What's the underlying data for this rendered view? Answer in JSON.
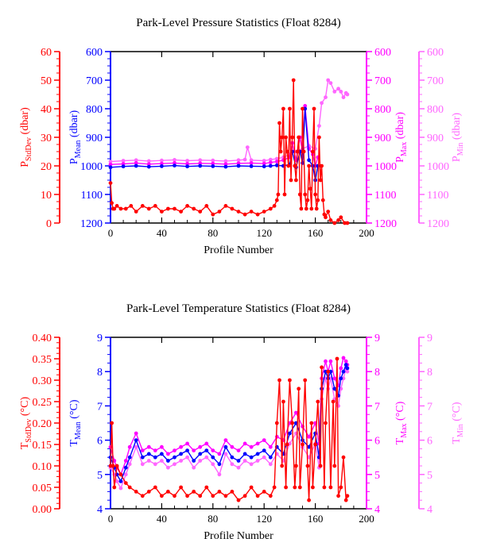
{
  "colors": {
    "stddev": "#ff0000",
    "mean": "#0000ff",
    "max": "#ff00ff",
    "min": "#ff66ff",
    "frame": "#000000"
  },
  "chart_data": [
    {
      "type": "line",
      "title": "Park-Level Pressure Statistics (Float 8284)",
      "xlabel": "Profile Number",
      "xlim": [
        0,
        200
      ],
      "xticks": [
        "0",
        "40",
        "80",
        "120",
        "160",
        "200"
      ],
      "axes": [
        {
          "id": "stddev",
          "label_main": "P",
          "label_sub": "StdDev",
          "label_unit": " (dbar)",
          "ticks": [
            "0",
            "10",
            "20",
            "30",
            "40",
            "50",
            "60"
          ],
          "ylim": [
            0,
            60
          ],
          "reversed": false
        },
        {
          "id": "mean",
          "label_main": "P",
          "label_sub": "Mean",
          "label_unit": " (dbar)",
          "ticks": [
            "1200",
            "1100",
            "1000",
            "900",
            "800",
            "700",
            "600"
          ],
          "ylim": [
            600,
            1200
          ],
          "reversed": true
        },
        {
          "id": "max",
          "label_main": "P",
          "label_sub": "Max",
          "label_unit": " (dbar)",
          "ticks": [
            "1200",
            "1100",
            "1000",
            "900",
            "800",
            "700",
            "600"
          ],
          "ylim": [
            600,
            1200
          ],
          "reversed": true
        },
        {
          "id": "min",
          "label_main": "P",
          "label_sub": "Min",
          "label_unit": " (dbar)",
          "ticks": [
            "1200",
            "1100",
            "1000",
            "900",
            "800",
            "700",
            "600"
          ],
          "ylim": [
            600,
            1200
          ],
          "reversed": true
        }
      ],
      "series": [
        {
          "id": "stddev",
          "x": [
            0,
            1,
            2,
            3,
            5,
            8,
            12,
            16,
            20,
            25,
            30,
            35,
            40,
            45,
            50,
            55,
            60,
            65,
            70,
            75,
            80,
            85,
            90,
            95,
            100,
            105,
            110,
            115,
            120,
            125,
            128,
            130,
            131,
            132,
            133,
            134,
            135,
            136,
            137,
            138,
            139,
            140,
            141,
            142,
            143,
            144,
            145,
            146,
            147,
            148,
            149,
            150,
            151,
            152,
            153,
            154,
            155,
            156,
            157,
            158,
            159,
            160,
            161,
            162,
            163,
            164,
            165,
            166,
            167,
            168,
            170,
            172,
            175,
            178,
            180,
            183,
            185
          ],
          "y": [
            14,
            7,
            5,
            5,
            6,
            5,
            5,
            6,
            4,
            6,
            5,
            6,
            4,
            5,
            5,
            4,
            6,
            5,
            4,
            6,
            3,
            4,
            6,
            5,
            4,
            3,
            4,
            3,
            4,
            5,
            6,
            8,
            10,
            35,
            25,
            30,
            40,
            10,
            30,
            25,
            20,
            40,
            15,
            30,
            50,
            20,
            15,
            25,
            30,
            10,
            5,
            40,
            25,
            10,
            5,
            8,
            20,
            12,
            5,
            25,
            40,
            10,
            5,
            8,
            30,
            15,
            20,
            8,
            3,
            2,
            4,
            1,
            0,
            1,
            2,
            0,
            0
          ]
        },
        {
          "id": "mean",
          "x": [
            0,
            10,
            20,
            30,
            40,
            50,
            60,
            70,
            80,
            90,
            100,
            110,
            120,
            125,
            130,
            135,
            140,
            142,
            145,
            148,
            150,
            152,
            155,
            158,
            160,
            162
          ],
          "y": [
            1005,
            1002,
            1000,
            1003,
            1001,
            999,
            1002,
            1000,
            1001,
            1003,
            1000,
            1001,
            1002,
            1000,
            998,
            1000,
            995,
            950,
            1005,
            950,
            990,
            800,
            980,
            1000,
            1050,
            1000
          ]
        },
        {
          "id": "max",
          "x": [
            0,
            10,
            20,
            30,
            40,
            50,
            60,
            70,
            80,
            90,
            100,
            110,
            120,
            125,
            130,
            135,
            140,
            142,
            145,
            148,
            150,
            152,
            155,
            158,
            160,
            162
          ],
          "y": [
            995,
            993,
            990,
            994,
            992,
            990,
            993,
            991,
            992,
            994,
            991,
            990,
            992,
            988,
            985,
            980,
            970,
            920,
            980,
            900,
            950,
            790,
            940,
            960,
            1000,
            970
          ]
        },
        {
          "id": "min",
          "x": [
            0,
            10,
            20,
            30,
            40,
            50,
            60,
            70,
            80,
            90,
            100,
            105,
            107,
            110,
            120,
            125,
            130,
            135,
            140,
            145,
            150,
            155,
            160,
            163,
            165,
            168,
            170,
            172,
            175,
            178,
            180,
            182,
            184,
            185
          ],
          "y": [
            985,
            982,
            980,
            983,
            981,
            979,
            982,
            980,
            981,
            983,
            980,
            978,
            935,
            980,
            982,
            978,
            975,
            970,
            960,
            950,
            940,
            930,
            940,
            860,
            780,
            760,
            700,
            710,
            740,
            730,
            740,
            760,
            745,
            750
          ]
        }
      ]
    },
    {
      "type": "line",
      "title": "Park-Level Temperature Statistics (Float 8284)",
      "xlabel": "Profile Number",
      "xlim": [
        0,
        200
      ],
      "xticks": [
        "0",
        "40",
        "80",
        "120",
        "160",
        "200"
      ],
      "axes": [
        {
          "id": "stddev",
          "label_main": "T",
          "label_sub": "StdDev",
          "label_unit": " (°C)",
          "ticks": [
            "0.00",
            "0.05",
            "0.10",
            "0.15",
            "0.20",
            "0.25",
            "0.30",
            "0.35",
            "0.40"
          ],
          "ylim": [
            0,
            0.4
          ],
          "reversed": false
        },
        {
          "id": "mean",
          "label_main": "T",
          "label_sub": "Mean",
          "label_unit": " (°C)",
          "ticks": [
            "4",
            "5",
            "6",
            "7",
            "8",
            "9"
          ],
          "ylim": [
            4,
            9
          ],
          "reversed": false
        },
        {
          "id": "max",
          "label_main": "T",
          "label_sub": "Max",
          "label_unit": " (°C)",
          "ticks": [
            "4",
            "5",
            "6",
            "7",
            "8",
            "9"
          ],
          "ylim": [
            4,
            9
          ],
          "reversed": false
        },
        {
          "id": "min",
          "label_main": "T",
          "label_sub": "Min",
          "label_unit": " (°C)",
          "ticks": [
            "4",
            "5",
            "6",
            "7",
            "8",
            "9"
          ],
          "ylim": [
            4,
            9
          ],
          "reversed": false
        }
      ],
      "series": [
        {
          "id": "stddev",
          "x": [
            0,
            1,
            2,
            3,
            5,
            8,
            12,
            15,
            20,
            25,
            30,
            35,
            40,
            45,
            50,
            55,
            60,
            65,
            70,
            75,
            80,
            85,
            90,
            95,
            100,
            105,
            110,
            115,
            120,
            125,
            128,
            130,
            132,
            134,
            135,
            137,
            138,
            140,
            142,
            144,
            145,
            147,
            148,
            150,
            152,
            154,
            155,
            157,
            158,
            160,
            162,
            164,
            165,
            167,
            168,
            170,
            172,
            174,
            175,
            177,
            178,
            180,
            182,
            184,
            185
          ],
          "y": [
            0.1,
            0.2,
            0.1,
            0.05,
            0.1,
            0.08,
            0.06,
            0.05,
            0.04,
            0.03,
            0.04,
            0.05,
            0.03,
            0.04,
            0.03,
            0.05,
            0.03,
            0.04,
            0.03,
            0.05,
            0.03,
            0.04,
            0.03,
            0.04,
            0.02,
            0.03,
            0.05,
            0.03,
            0.04,
            0.03,
            0.05,
            0.2,
            0.3,
            0.1,
            0.25,
            0.05,
            0.15,
            0.3,
            0.2,
            0.05,
            0.1,
            0.28,
            0.05,
            0.15,
            0.3,
            0.1,
            0.02,
            0.2,
            0.05,
            0.15,
            0.25,
            0.1,
            0.33,
            0.05,
            0.2,
            0.32,
            0.05,
            0.25,
            0.1,
            0.35,
            0.03,
            0.05,
            0.12,
            0.02,
            0.03
          ]
        },
        {
          "id": "mean",
          "x": [
            0,
            3,
            5,
            8,
            12,
            15,
            20,
            25,
            30,
            35,
            40,
            45,
            50,
            55,
            60,
            65,
            70,
            75,
            80,
            85,
            90,
            95,
            100,
            105,
            110,
            115,
            120,
            125,
            130,
            135,
            140,
            145,
            150,
            155,
            160,
            163,
            165,
            168,
            170,
            172,
            175,
            178,
            180,
            182,
            184,
            185
          ],
          "y": [
            5.5,
            5.2,
            5.0,
            4.8,
            5.2,
            5.5,
            6.0,
            5.5,
            5.6,
            5.5,
            5.6,
            5.4,
            5.5,
            5.6,
            5.7,
            5.4,
            5.6,
            5.7,
            5.5,
            5.3,
            5.8,
            5.5,
            5.4,
            5.6,
            5.5,
            5.6,
            5.7,
            5.5,
            5.8,
            5.6,
            6.2,
            6.5,
            6.0,
            5.8,
            6.2,
            5.5,
            7.5,
            8.0,
            7.8,
            8.0,
            7.5,
            7.3,
            7.8,
            8.0,
            8.2,
            8.1
          ]
        },
        {
          "id": "max",
          "x": [
            0,
            3,
            5,
            8,
            12,
            15,
            20,
            25,
            30,
            35,
            40,
            45,
            50,
            55,
            60,
            65,
            70,
            75,
            80,
            85,
            90,
            95,
            100,
            105,
            110,
            115,
            120,
            125,
            130,
            135,
            140,
            145,
            150,
            155,
            160,
            163,
            165,
            168,
            170,
            172,
            175,
            178,
            180,
            182,
            184,
            185
          ],
          "y": [
            5.8,
            5.4,
            5.2,
            5.0,
            5.4,
            5.8,
            6.2,
            5.7,
            5.8,
            5.7,
            5.8,
            5.6,
            5.7,
            5.8,
            5.9,
            5.7,
            5.8,
            5.9,
            5.7,
            5.6,
            6.0,
            5.8,
            5.7,
            5.9,
            5.8,
            5.9,
            6.0,
            5.8,
            6.1,
            6.0,
            6.5,
            6.8,
            6.4,
            6.1,
            6.5,
            5.9,
            7.8,
            8.3,
            8.0,
            8.3,
            7.8,
            7.6,
            8.1,
            8.4,
            8.3,
            8.2
          ]
        },
        {
          "id": "min",
          "x": [
            0,
            3,
            5,
            8,
            12,
            15,
            20,
            25,
            30,
            35,
            40,
            45,
            50,
            55,
            60,
            65,
            70,
            75,
            80,
            85,
            90,
            95,
            100,
            105,
            110,
            115,
            120,
            125,
            130,
            135,
            140,
            145,
            150,
            155,
            160,
            163,
            165,
            168,
            170,
            172,
            175,
            178,
            180,
            182,
            184,
            185
          ],
          "y": [
            5.2,
            5.0,
            4.8,
            4.6,
            5.0,
            5.3,
            5.8,
            5.3,
            5.4,
            5.3,
            5.4,
            5.2,
            5.3,
            5.4,
            5.5,
            5.2,
            5.4,
            5.5,
            5.3,
            5.0,
            5.6,
            5.3,
            5.2,
            5.4,
            5.3,
            5.4,
            5.5,
            5.3,
            5.6,
            5.4,
            5.9,
            6.2,
            5.8,
            5.5,
            5.9,
            5.2,
            7.2,
            7.8,
            7.5,
            7.8,
            7.2,
            7.0,
            7.5,
            7.8,
            8.1,
            8.0
          ]
        }
      ]
    }
  ]
}
